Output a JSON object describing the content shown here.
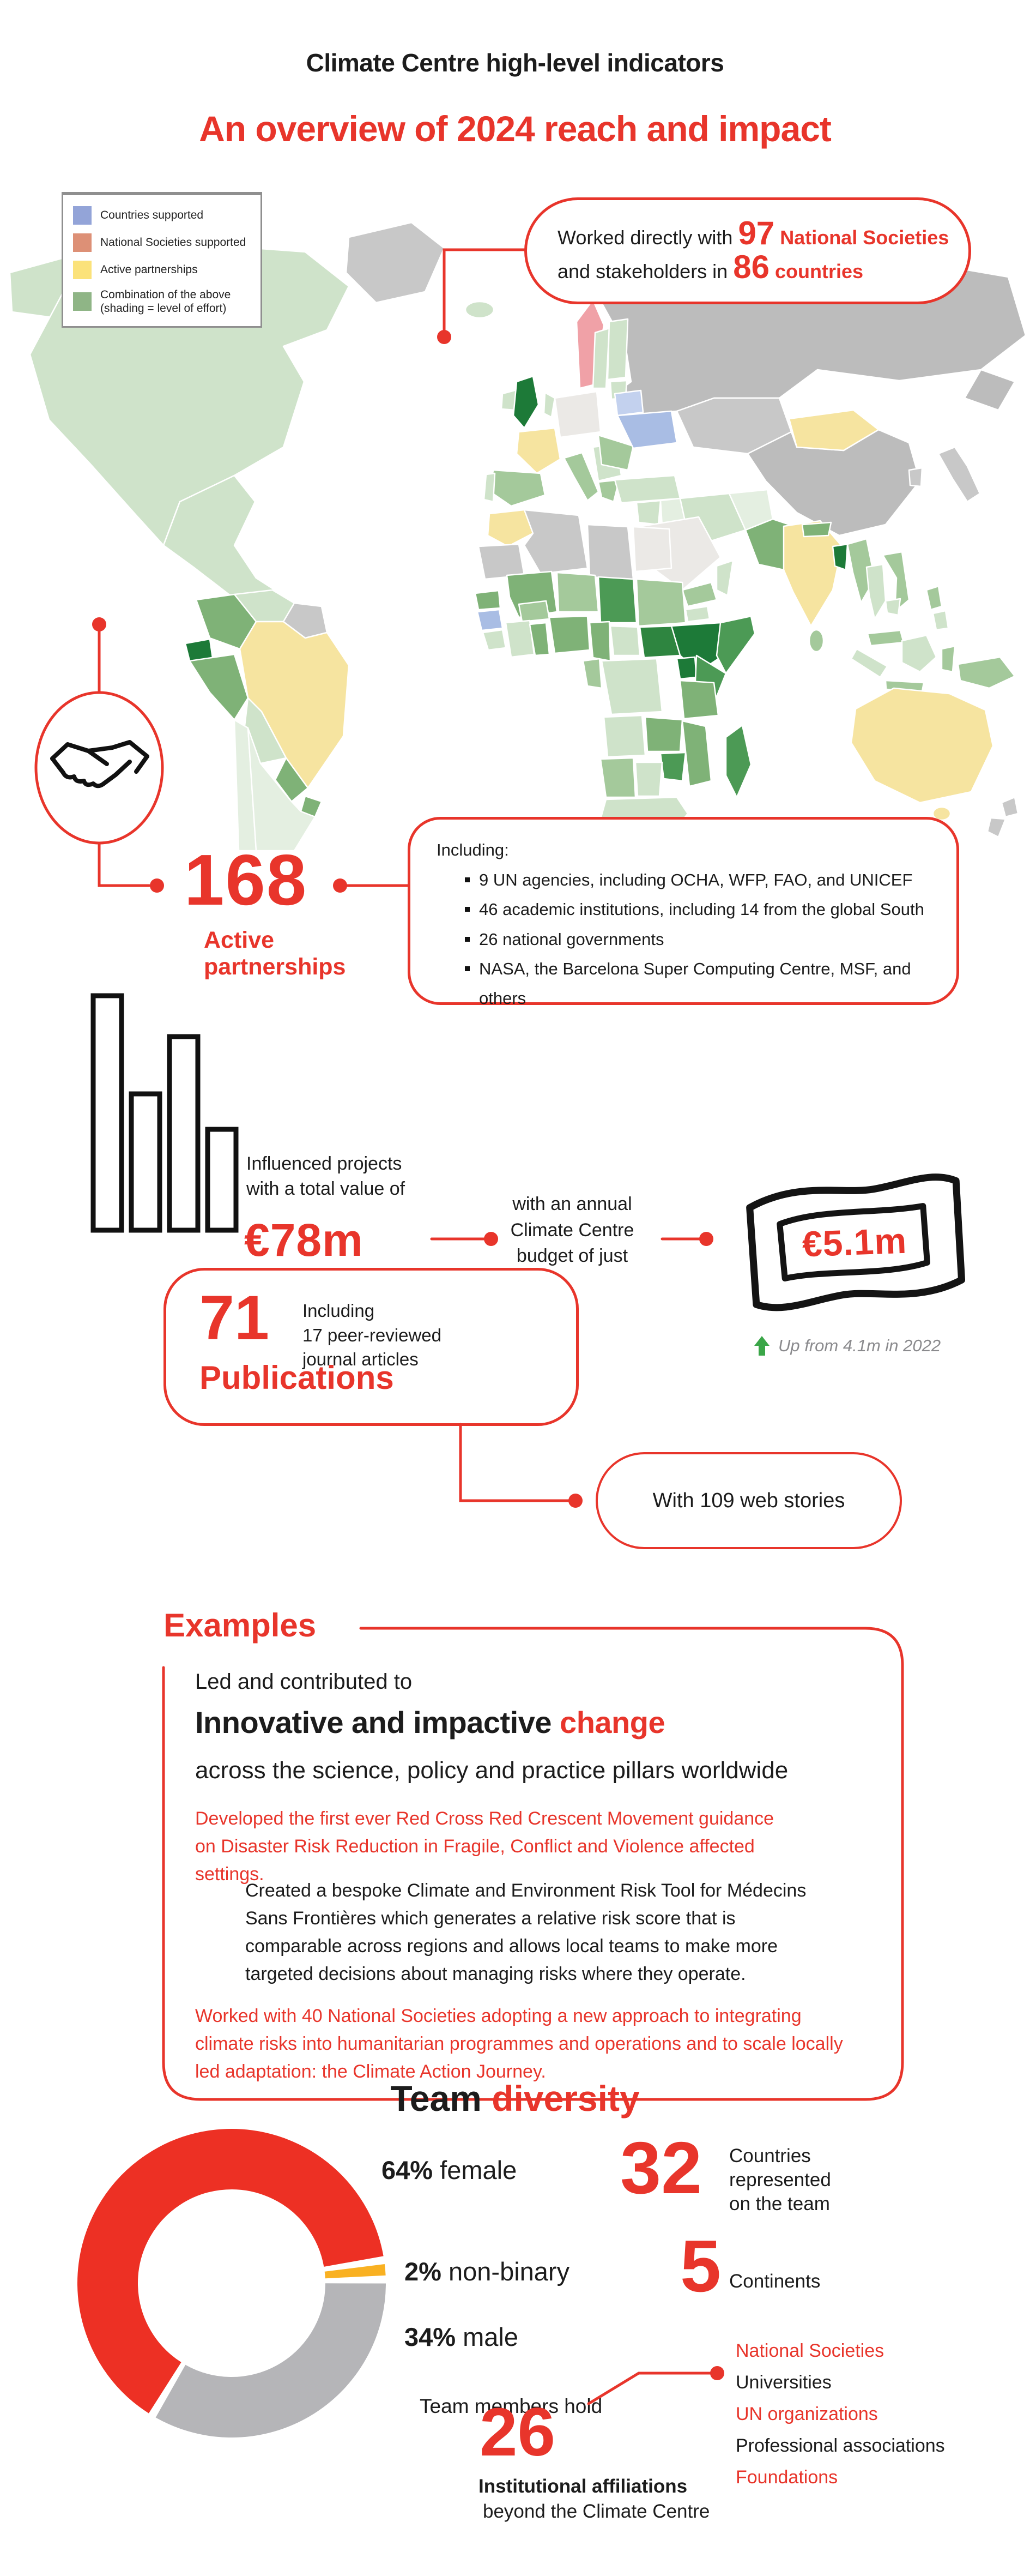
{
  "colors": {
    "accent_red": "#e8352b",
    "donut_red": "#ed3024",
    "donut_yellow": "#f9b122",
    "donut_gray": "#b5b5b8",
    "arrow_green": "#3aa648",
    "note_gray": "#8a8a8d",
    "legend_blue": "#93a4d8",
    "legend_salmon": "#dd9076",
    "legend_yellow": "#fbe27a",
    "legend_green": "#8fb586"
  },
  "header": {
    "title": "Climate Centre high-level indicators",
    "subtitle": "An overview of 2024 reach and impact"
  },
  "legend": {
    "items": [
      {
        "label": "Countries supported"
      },
      {
        "label": "National Societies supported"
      },
      {
        "label": "Active partnerships"
      },
      {
        "label": "Combination of the above\n(shading = level of effort)"
      }
    ]
  },
  "callout": {
    "pre": "Worked directly with",
    "n1": "97",
    "l1": "National Societies",
    "mid": "and stakeholders in",
    "n2": "86",
    "l2": "countries"
  },
  "partnerships": {
    "number": "168",
    "label": "Active\npartnerships",
    "including": "Including:",
    "bullets": [
      "9 UN agencies, including OCHA, WFP, FAO, and UNICEF",
      "46 academic institutions, including 14 from the global South",
      "26 national governments",
      "NASA, the Barcelona Super Computing Centre, MSF, and others"
    ]
  },
  "funding": {
    "influenced": "Influenced projects\nwith a total value of",
    "value": "€78m",
    "budget": "with an annual\nClimate Centre\nbudget of just",
    "amount": "€5.1m",
    "note": "Up from 4.1m in 2022"
  },
  "publications": {
    "number": "71",
    "including": "Including\n17 peer-reviewed\njournal articles",
    "label": "Publications",
    "web_stories": "With 109 web stories"
  },
  "examples": {
    "title": "Examples",
    "intro": "Led and contributed to",
    "headline": "Innovative and impactive",
    "headline_accent": "change",
    "subline": "across the science, policy and practice pillars worldwide",
    "para1": "Developed the first ever Red Cross Red Crescent Movement guidance on Disaster Risk Reduction in Fragile, Conflict and Violence affected settings.",
    "para2": "Created a bespoke Climate and Environment Risk Tool for Médecins Sans Frontières which generates a relative risk score that is comparable across regions and allows local teams to make more targeted decisions about managing risks where they operate.",
    "para3": "Worked with 40 National Societies adopting a new approach to integrating climate risks into humanitarian programmes and operations and to scale locally led adaptation: the Climate Action Journey."
  },
  "team": {
    "title": "Team",
    "title_accent": "diversity",
    "stats": [
      {
        "pct": "64%",
        "label": "female"
      },
      {
        "pct": "2%",
        "label": "non-binary"
      },
      {
        "pct": "34%",
        "label": "male"
      }
    ],
    "countries": {
      "number": "32",
      "label": "Countries\nrepresented\non the team"
    },
    "continents": {
      "number": "5",
      "label": "Continents"
    },
    "hold": "Team members hold",
    "number": "26",
    "aff_bold": "Institutional affiliations",
    "aff_rest": "beyond the Climate Centre",
    "affiliations": [
      {
        "label": "National Societies"
      },
      {
        "label": "Universities"
      },
      {
        "label": "UN organizations"
      },
      {
        "label": "Professional associations"
      },
      {
        "label": "Foundations"
      }
    ]
  },
  "chart_data": {
    "type": "pie",
    "title": "Team diversity",
    "labels": [
      "female",
      "non-binary",
      "male"
    ],
    "values": [
      64,
      2,
      34
    ],
    "colors": [
      "#ed3024",
      "#f9b122",
      "#b5b5b8"
    ],
    "donut": true,
    "start_angle": 211,
    "gap_deg": 3
  }
}
